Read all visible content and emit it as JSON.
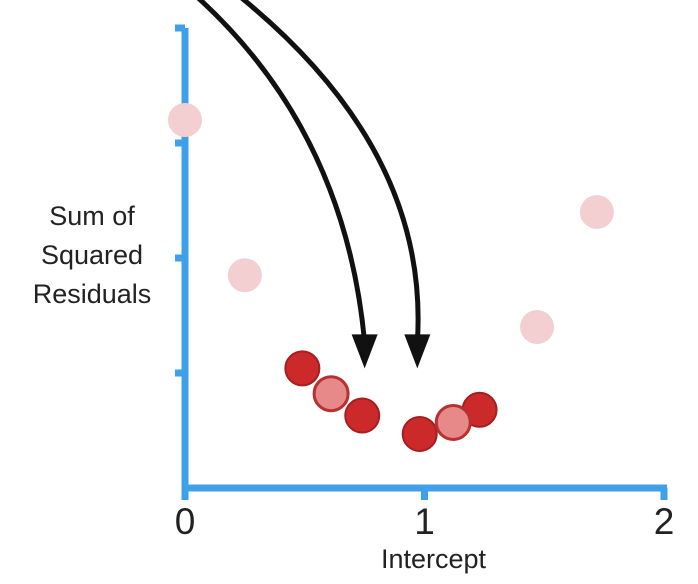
{
  "colors": {
    "axis": "#3fa0ea",
    "faded_point": "#f4cfd1",
    "highlight_point": "#cc2a2a",
    "highlight_stroke": "#a61e1e",
    "mid_point": "#e78889",
    "mid_stroke": "#b8302f",
    "arrow": "#111111"
  },
  "chart_data": {
    "type": "scatter",
    "title": "",
    "xlabel": "Intercept",
    "ylabel": "Sum of\nSquared\nResiduals",
    "ylabel_lines": [
      "Sum of",
      "Squared",
      "Residuals"
    ],
    "xlim": [
      0,
      2
    ],
    "ylim": [
      0,
      4
    ],
    "x_ticks": [
      0,
      1,
      2
    ],
    "x_tick_labels": [
      "0",
      "1",
      "2"
    ],
    "y_ticks": [
      0,
      1,
      2,
      3,
      4
    ],
    "y_tick_labels": [],
    "grid": false,
    "series": [
      {
        "style": "faded",
        "points": [
          {
            "x": 0.0,
            "y": 3.2
          },
          {
            "x": 0.25,
            "y": 1.85
          },
          {
            "x": 1.47,
            "y": 1.4
          },
          {
            "x": 1.72,
            "y": 2.4
          }
        ]
      },
      {
        "style": "highlight",
        "points": [
          {
            "x": 0.49,
            "y": 1.04
          },
          {
            "x": 0.74,
            "y": 0.63
          },
          {
            "x": 0.98,
            "y": 0.47
          },
          {
            "x": 1.23,
            "y": 0.68
          }
        ]
      },
      {
        "style": "midpoint",
        "points": [
          {
            "x": 0.61,
            "y": 0.82
          },
          {
            "x": 1.12,
            "y": 0.57
          }
        ]
      }
    ],
    "arrows": [
      {
        "target": {
          "x": 0.75,
          "y": 1.04
        }
      },
      {
        "target": {
          "x": 0.97,
          "y": 1.04
        }
      }
    ]
  }
}
